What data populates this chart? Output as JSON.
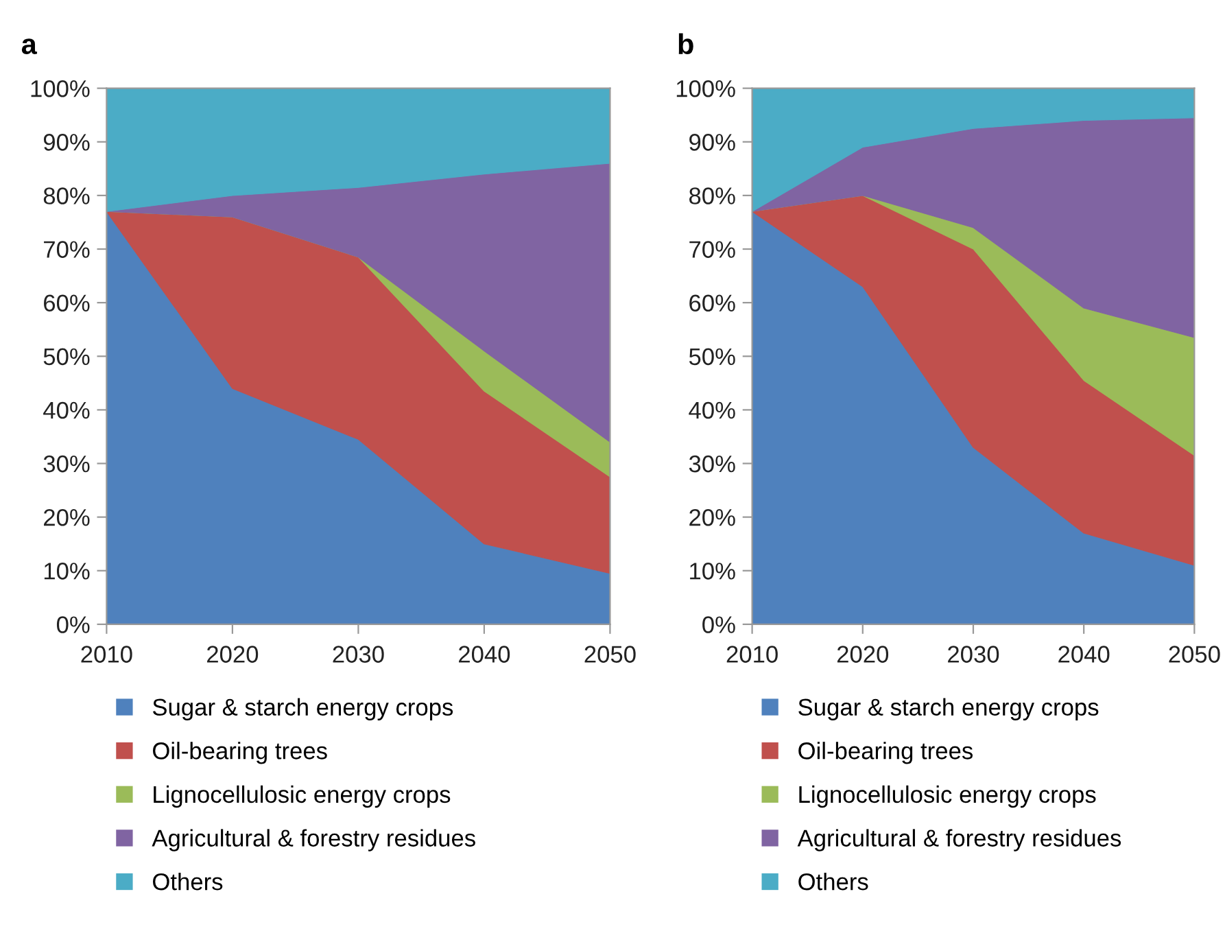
{
  "chart_data": [
    {
      "type": "area",
      "title": "a",
      "stacked": true,
      "x": [
        2010,
        2020,
        2030,
        2040,
        2050
      ],
      "xlim": [
        2010,
        2050
      ],
      "xticks": [
        2010,
        2020,
        2030,
        2040,
        2050
      ],
      "ylim": [
        0,
        100
      ],
      "yticks": [
        {
          "value": 0,
          "label": "0%"
        },
        {
          "value": 10,
          "label": "10%"
        },
        {
          "value": 20,
          "label": "20%"
        },
        {
          "value": 30,
          "label": "30%"
        },
        {
          "value": 40,
          "label": "40%"
        },
        {
          "value": 50,
          "label": "50%"
        },
        {
          "value": 60,
          "label": "60%"
        },
        {
          "value": 70,
          "label": "70%"
        },
        {
          "value": 80,
          "label": "80%"
        },
        {
          "value": 90,
          "label": "90%"
        },
        {
          "value": 100,
          "label": "100%"
        }
      ],
      "grid": false,
      "legend": "bottom",
      "series": [
        {
          "name": "Sugar & starch energy crops",
          "color": "#4f81bd",
          "values": [
            77,
            44,
            34.5,
            15,
            9.5
          ]
        },
        {
          "name": "Oil-bearing trees",
          "color": "#c0504d",
          "values": [
            0,
            32,
            34,
            28.5,
            18
          ]
        },
        {
          "name": "Lignocellulosic energy crops",
          "color": "#9bbb59",
          "values": [
            0,
            0,
            0,
            7.5,
            6.5
          ]
        },
        {
          "name": "Agricultural & forestry residues",
          "color": "#8064a2",
          "values": [
            0,
            4,
            13,
            33,
            52
          ]
        },
        {
          "name": "Others",
          "color": "#4bacc6",
          "values": [
            23,
            20,
            18.5,
            16,
            14
          ]
        }
      ]
    },
    {
      "type": "area",
      "title": "b",
      "stacked": true,
      "x": [
        2010,
        2020,
        2030,
        2040,
        2050
      ],
      "xlim": [
        2010,
        2050
      ],
      "xticks": [
        2010,
        2020,
        2030,
        2040,
        2050
      ],
      "ylim": [
        0,
        100
      ],
      "yticks": [
        {
          "value": 0,
          "label": "0%"
        },
        {
          "value": 10,
          "label": "10%"
        },
        {
          "value": 20,
          "label": "20%"
        },
        {
          "value": 30,
          "label": "30%"
        },
        {
          "value": 40,
          "label": "40%"
        },
        {
          "value": 50,
          "label": "50%"
        },
        {
          "value": 60,
          "label": "60%"
        },
        {
          "value": 70,
          "label": "70%"
        },
        {
          "value": 80,
          "label": "80%"
        },
        {
          "value": 90,
          "label": "90%"
        },
        {
          "value": 100,
          "label": "100%"
        }
      ],
      "grid": false,
      "legend": "bottom",
      "series": [
        {
          "name": "Sugar & starch energy crops",
          "color": "#4f81bd",
          "values": [
            77,
            63,
            33,
            17,
            11
          ]
        },
        {
          "name": "Oil-bearing trees",
          "color": "#c0504d",
          "values": [
            0,
            17,
            37,
            28.5,
            20.5
          ]
        },
        {
          "name": "Lignocellulosic energy crops",
          "color": "#9bbb59",
          "values": [
            0,
            0,
            4,
            13.5,
            22
          ]
        },
        {
          "name": "Agricultural & forestry residues",
          "color": "#8064a2",
          "values": [
            0,
            9,
            18.5,
            35,
            41
          ]
        },
        {
          "name": "Others",
          "color": "#4bacc6",
          "values": [
            23,
            11,
            7.5,
            6,
            5.5
          ]
        }
      ]
    }
  ]
}
